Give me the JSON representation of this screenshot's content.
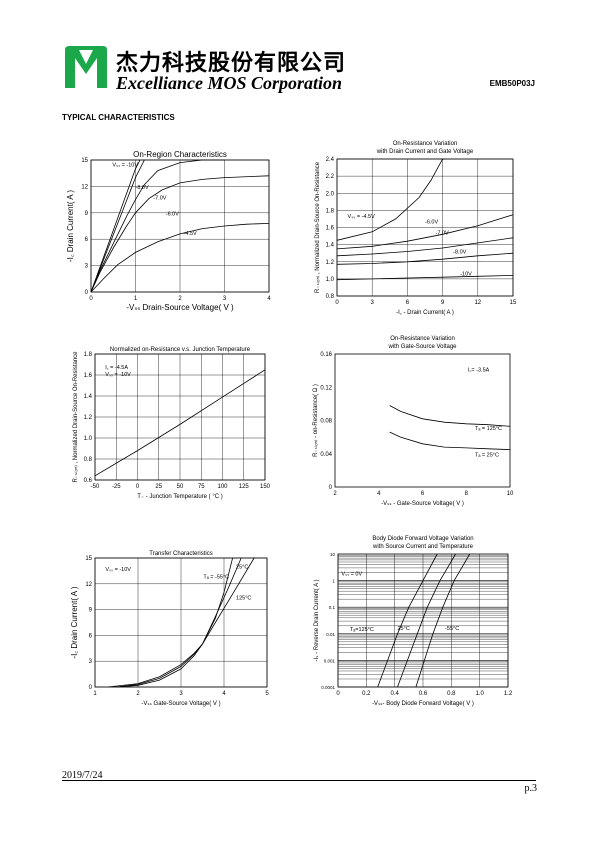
{
  "header": {
    "company_cn": "杰力科技股份有限公司",
    "company_en": "Excelliance MOS Corporation",
    "part_number": "EMB50P03J",
    "brand_color": "#1aa84a"
  },
  "section_title": "TYPICAL CHARACTERISTICS",
  "footer": {
    "date": "2019/7/24",
    "page": "p.3"
  },
  "chart_data": [
    {
      "id": "on-region",
      "type": "line",
      "title": "On-Region Characteristics",
      "xlabel": "-Vₛₛ Drain-Source Voltage( V )",
      "ylabel": "-I꜀ Drain Current( A )",
      "xlim": [
        0,
        4
      ],
      "ylim": [
        0,
        15
      ],
      "xticks": [
        "0",
        "1",
        "2",
        "3",
        "4"
      ],
      "yticks": [
        "0",
        "3",
        "6",
        "9",
        "12",
        "15"
      ],
      "grid": true,
      "series": [
        {
          "name": "Vₛₛ = -10V",
          "x": [
            0,
            0.2,
            0.4,
            0.6,
            0.8,
            1.0,
            1.1
          ],
          "y": [
            0,
            2.8,
            5.6,
            8.4,
            11.2,
            14,
            15
          ]
        },
        {
          "name": "-8.0V",
          "x": [
            0,
            0.2,
            0.4,
            0.6,
            0.8,
            1.0,
            1.2
          ],
          "y": [
            0,
            2.6,
            5.2,
            7.8,
            10.4,
            13,
            15
          ]
        },
        {
          "name": "-7.0V",
          "x": [
            0,
            0.2,
            0.5,
            0.8,
            1.0,
            1.2,
            1.5,
            2.0,
            2.5,
            3.0
          ],
          "y": [
            0,
            2.4,
            5.5,
            8.6,
            10.5,
            12.2,
            13.8,
            14.7,
            15,
            15
          ]
        },
        {
          "name": "-6.0V",
          "x": [
            0,
            0.2,
            0.5,
            0.8,
            1.0,
            1.3,
            1.6,
            2.0,
            2.5,
            3.0,
            4.0
          ],
          "y": [
            0,
            2.2,
            5.0,
            7.5,
            9.0,
            10.6,
            11.6,
            12.4,
            12.8,
            13.0,
            13.2
          ]
        },
        {
          "name": "-4.5V",
          "x": [
            0,
            0.3,
            0.6,
            1.0,
            1.5,
            2.0,
            2.5,
            3.0,
            3.5,
            4.0
          ],
          "y": [
            0,
            1.6,
            3.1,
            4.5,
            5.7,
            6.6,
            7.2,
            7.5,
            7.7,
            7.8
          ]
        }
      ]
    },
    {
      "id": "ron-vs-current",
      "type": "line",
      "title": "On-Resistance Variation with Drain Current and Gate Voltage",
      "xlabel": "-I꜀ - Drain Current( A )",
      "ylabel": "R₋ₛ₍ₒₙ₎ , Normalized Drain-Source On-Resistance",
      "xlim": [
        0,
        15
      ],
      "ylim": [
        0.8,
        2.4
      ],
      "xticks": [
        "0",
        "3",
        "6",
        "9",
        "12",
        "15"
      ],
      "yticks": [
        "0.8",
        "1.0",
        "1.2",
        "1.4",
        "1.6",
        "1.8",
        "2.0",
        "2.2",
        "2.4"
      ],
      "grid": true,
      "series": [
        {
          "name": "Vₛₛ = -4.5V",
          "x": [
            0,
            3,
            5,
            7,
            8,
            8.6,
            9,
            9.3
          ],
          "y": [
            1.45,
            1.55,
            1.7,
            1.95,
            2.15,
            2.3,
            2.4,
            2.4
          ]
        },
        {
          "name": "-6.0V",
          "x": [
            0,
            3,
            6,
            9,
            12,
            15
          ],
          "y": [
            1.35,
            1.38,
            1.44,
            1.52,
            1.62,
            1.75
          ]
        },
        {
          "name": "-7.0V",
          "x": [
            0,
            3,
            6,
            9,
            12,
            15
          ],
          "y": [
            1.27,
            1.29,
            1.32,
            1.36,
            1.42,
            1.48
          ]
        },
        {
          "name": "-8.0V",
          "x": [
            0,
            3,
            6,
            9,
            12,
            15
          ],
          "y": [
            1.17,
            1.18,
            1.2,
            1.23,
            1.27,
            1.3
          ]
        },
        {
          "name": "-10V",
          "x": [
            0,
            3,
            6,
            9,
            12,
            15
          ],
          "y": [
            0.99,
            1.0,
            1.01,
            1.02,
            1.03,
            1.04
          ]
        }
      ]
    },
    {
      "id": "ron-vs-temp",
      "type": "line",
      "title": "Normalized on-Resistance v.s. Junction Temperature",
      "xlabel": "T₋ - Junction Temperature ( °C )",
      "ylabel": "R₋ₛ₍ₒₙ₎ , Normalized Drain-Source On-Resistance",
      "xlim": [
        -50,
        150
      ],
      "ylim": [
        0.6,
        1.8
      ],
      "xticks": [
        "-50",
        "-25",
        "0",
        "25",
        "50",
        "75",
        "100",
        "125",
        "150"
      ],
      "yticks": [
        "0.6",
        "0.8",
        "1.0",
        "1.2",
        "1.4",
        "1.6",
        "1.8"
      ],
      "grid": true,
      "annotations": [
        "I꜀ = -4.5A",
        "Vₛₛ = -10V"
      ],
      "series": [
        {
          "name": "",
          "x": [
            -50,
            0,
            50,
            100,
            150
          ],
          "y": [
            0.64,
            0.88,
            1.13,
            1.39,
            1.65
          ]
        }
      ]
    },
    {
      "id": "ron-vs-vgs",
      "type": "line",
      "title": "On-Resistance Variation with Gate-Source Voltage",
      "xlabel": "-Vₛₛ - Gate-Source Voltage( V )",
      "ylabel": "R₋ₛ₍ₒₙ₎ - on-Resistance( Ω )",
      "xlim": [
        2,
        10
      ],
      "ylim": [
        0,
        0.16
      ],
      "xticks": [
        "2",
        "4",
        "6",
        "8",
        "10"
      ],
      "yticks": [
        "0",
        "0.04",
        "0.08",
        "0.12",
        "0.16"
      ],
      "grid": false,
      "annotations": [
        "I꜀= -3.5A"
      ],
      "series": [
        {
          "name": "Tₐ = 125°C",
          "x": [
            4.5,
            5,
            6,
            7,
            8,
            9,
            10
          ],
          "y": [
            0.098,
            0.091,
            0.082,
            0.078,
            0.076,
            0.075,
            0.073
          ]
        },
        {
          "name": "Tₐ = 25°C",
          "x": [
            4.5,
            5,
            6,
            7,
            8,
            9,
            10
          ],
          "y": [
            0.066,
            0.06,
            0.052,
            0.048,
            0.047,
            0.046,
            0.045
          ]
        }
      ]
    },
    {
      "id": "transfer",
      "type": "line",
      "title": "Transfer Characteristics",
      "xlabel": "-Vₛₛ Gate-Source Voltage( V )",
      "ylabel": "-I꜀ Drain Current( A )",
      "xlim": [
        1,
        5
      ],
      "ylim": [
        0,
        15
      ],
      "xticks": [
        "1",
        "2",
        "3",
        "4",
        "5"
      ],
      "yticks": [
        "0",
        "3",
        "6",
        "9",
        "12",
        "15"
      ],
      "grid": true,
      "annotations": [
        "Vₛₛ = -10V"
      ],
      "series": [
        {
          "name": "Tₐ = -55°C",
          "x": [
            1.5,
            2,
            2.5,
            3,
            3.3,
            3.5,
            3.8,
            4.0,
            4.2
          ],
          "y": [
            0,
            0.3,
            1.0,
            2.4,
            3.8,
            5.0,
            8.0,
            11.0,
            15
          ]
        },
        {
          "name": "25°C",
          "x": [
            1.5,
            2,
            2.5,
            3,
            3.3,
            3.5,
            3.8,
            4.1,
            4.4
          ],
          "y": [
            0,
            0.2,
            0.8,
            2.1,
            3.6,
            5.0,
            8.2,
            11.5,
            15
          ]
        },
        {
          "name": "125°C",
          "x": [
            1.3,
            2,
            2.5,
            3,
            3.3,
            3.5,
            3.8,
            4.2,
            4.7
          ],
          "y": [
            0,
            0.4,
            1.2,
            2.6,
            3.9,
            5.0,
            7.5,
            10.8,
            15
          ]
        }
      ]
    },
    {
      "id": "body-diode",
      "type": "line",
      "title": "Body Diode Forward Voltage Variation with Source Current and Temperature",
      "xlabel": "-Vₛₛ- Body Diode Forward Voltage( V )",
      "ylabel": "-Iₛ - Reverse Drain Current( A )",
      "xlim": [
        0,
        1.2
      ],
      "ylim": [
        0.0001,
        10
      ],
      "yscale": "log",
      "xticks": [
        "0",
        "0.2",
        "0.4",
        "0.6",
        "0.8",
        "1.0",
        "1.2"
      ],
      "yticks": [
        "0.0001",
        "0.001",
        "0.01",
        "0.1",
        "1",
        "10"
      ],
      "grid": true,
      "annotations": [
        "Vₛₛ = 0V"
      ],
      "series": [
        {
          "name": "Tₐ=125°C",
          "x": [
            0.28,
            0.35,
            0.42,
            0.5,
            0.6,
            0.7
          ],
          "y": [
            0.0001,
            0.001,
            0.01,
            0.1,
            1,
            10
          ]
        },
        {
          "name": "25°C",
          "x": [
            0.42,
            0.49,
            0.56,
            0.63,
            0.72,
            0.83
          ],
          "y": [
            0.0001,
            0.001,
            0.01,
            0.1,
            1,
            10
          ]
        },
        {
          "name": "-55°C",
          "x": [
            0.55,
            0.61,
            0.67,
            0.74,
            0.82,
            0.93
          ],
          "y": [
            0.0001,
            0.001,
            0.01,
            0.1,
            1,
            10
          ]
        }
      ]
    }
  ]
}
